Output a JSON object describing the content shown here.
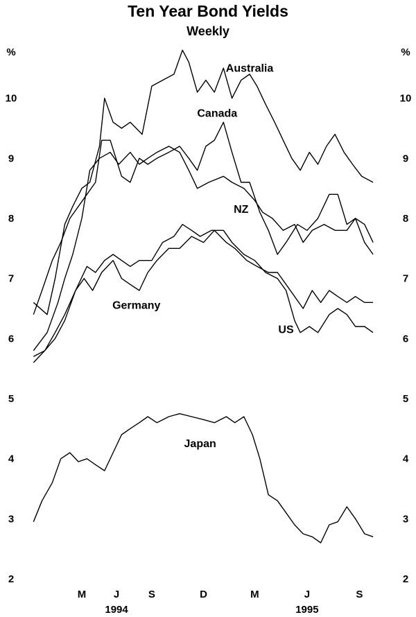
{
  "chart_data": {
    "type": "line",
    "title": "Ten Year Bond Yields",
    "subtitle": "Weekly",
    "unit_left": "%",
    "unit_right": "%",
    "ylim": [
      2,
      11
    ],
    "y_ticks": [
      2,
      3,
      4,
      5,
      6,
      7,
      8,
      9,
      10
    ],
    "xlim": [
      "1994-02-01",
      "1995-10-01"
    ],
    "x_ticks": [
      {
        "label": "M",
        "date": "1994-05-01"
      },
      {
        "label": "J",
        "date": "1994-07-01"
      },
      {
        "label": "S",
        "date": "1994-09-01"
      },
      {
        "label": "D",
        "date": "1994-12-01"
      },
      {
        "label": "M",
        "date": "1995-03-01"
      },
      {
        "label": "J",
        "date": "1995-06-01"
      },
      {
        "label": "S",
        "date": "1995-09-01"
      }
    ],
    "year_labels": [
      {
        "label": "1994",
        "date": "1994-07-01"
      },
      {
        "label": "1995",
        "date": "1995-06-01"
      }
    ],
    "series": [
      {
        "name": "Australia",
        "label_date": "1995-02-20",
        "label_value": 10.5,
        "points": [
          [
            "1994-02-05",
            6.6
          ],
          [
            "1994-03-01",
            6.4
          ],
          [
            "1994-03-15",
            7.0
          ],
          [
            "1994-04-01",
            7.9
          ],
          [
            "1994-04-15",
            8.2
          ],
          [
            "1994-05-01",
            8.5
          ],
          [
            "1994-05-15",
            8.6
          ],
          [
            "1994-06-01",
            9.2
          ],
          [
            "1994-06-10",
            10.0
          ],
          [
            "1994-06-25",
            9.6
          ],
          [
            "1994-07-10",
            9.5
          ],
          [
            "1994-07-25",
            9.6
          ],
          [
            "1994-08-15",
            9.4
          ],
          [
            "1994-09-01",
            10.2
          ],
          [
            "1994-09-20",
            10.3
          ],
          [
            "1994-10-10",
            10.4
          ],
          [
            "1994-10-25",
            10.8
          ],
          [
            "1994-11-05",
            10.6
          ],
          [
            "1994-11-20",
            10.1
          ],
          [
            "1994-12-05",
            10.3
          ],
          [
            "1994-12-20",
            10.1
          ],
          [
            "1995-01-05",
            10.5
          ],
          [
            "1995-01-20",
            10.0
          ],
          [
            "1995-02-05",
            10.3
          ],
          [
            "1995-02-20",
            10.4
          ],
          [
            "1995-03-05",
            10.2
          ],
          [
            "1995-03-20",
            9.9
          ],
          [
            "1995-04-05",
            9.6
          ],
          [
            "1995-04-20",
            9.3
          ],
          [
            "1995-05-05",
            9.0
          ],
          [
            "1995-05-20",
            8.8
          ],
          [
            "1995-06-05",
            9.1
          ],
          [
            "1995-06-20",
            8.9
          ],
          [
            "1995-07-05",
            9.2
          ],
          [
            "1995-07-20",
            9.4
          ],
          [
            "1995-08-05",
            9.1
          ],
          [
            "1995-08-20",
            8.9
          ],
          [
            "1995-09-05",
            8.7
          ],
          [
            "1995-09-25",
            8.6
          ]
        ]
      },
      {
        "name": "Canada",
        "label_date": "1994-12-25",
        "label_value": 9.75,
        "points": [
          [
            "1994-02-05",
            6.4
          ],
          [
            "1994-02-20",
            6.8
          ],
          [
            "1994-03-10",
            7.3
          ],
          [
            "1994-03-25",
            7.6
          ],
          [
            "1994-04-10",
            8.0
          ],
          [
            "1994-04-25",
            8.2
          ],
          [
            "1994-05-10",
            8.4
          ],
          [
            "1994-05-25",
            8.6
          ],
          [
            "1994-06-05",
            9.3
          ],
          [
            "1994-06-20",
            9.3
          ],
          [
            "1994-07-10",
            8.7
          ],
          [
            "1994-07-25",
            8.6
          ],
          [
            "1994-08-10",
            9.0
          ],
          [
            "1994-08-25",
            8.9
          ],
          [
            "1994-09-10",
            9.0
          ],
          [
            "1994-10-01",
            9.1
          ],
          [
            "1994-10-20",
            9.2
          ],
          [
            "1994-11-05",
            9.0
          ],
          [
            "1994-11-20",
            8.8
          ],
          [
            "1994-12-05",
            9.2
          ],
          [
            "1994-12-20",
            9.3
          ],
          [
            "1995-01-05",
            9.6
          ],
          [
            "1995-01-20",
            9.1
          ],
          [
            "1995-02-05",
            8.6
          ],
          [
            "1995-02-20",
            8.6
          ],
          [
            "1995-03-10",
            8.1
          ],
          [
            "1995-03-25",
            7.8
          ],
          [
            "1995-04-10",
            7.4
          ],
          [
            "1995-04-25",
            7.6
          ],
          [
            "1995-05-15",
            7.9
          ],
          [
            "1995-06-01",
            7.8
          ],
          [
            "1995-06-20",
            8.0
          ],
          [
            "1995-07-10",
            8.4
          ],
          [
            "1995-07-25",
            8.4
          ],
          [
            "1995-08-10",
            7.9
          ],
          [
            "1995-08-25",
            8.0
          ],
          [
            "1995-09-10",
            7.9
          ],
          [
            "1995-09-25",
            7.6
          ]
        ]
      },
      {
        "name": "NZ",
        "label_date": "1995-02-05",
        "label_value": 8.15,
        "points": [
          [
            "1994-02-05",
            5.8
          ],
          [
            "1994-03-01",
            6.1
          ],
          [
            "1994-03-20",
            6.6
          ],
          [
            "1994-04-01",
            7.0
          ],
          [
            "1994-04-15",
            7.4
          ],
          [
            "1994-05-01",
            8.0
          ],
          [
            "1994-05-15",
            8.8
          ],
          [
            "1994-06-01",
            9.0
          ],
          [
            "1994-06-20",
            9.1
          ],
          [
            "1994-07-05",
            8.9
          ],
          [
            "1994-07-25",
            9.1
          ],
          [
            "1994-08-10",
            8.9
          ],
          [
            "1994-08-25",
            9.0
          ],
          [
            "1994-09-10",
            9.1
          ],
          [
            "1994-10-01",
            9.2
          ],
          [
            "1994-10-20",
            9.1
          ],
          [
            "1994-11-05",
            8.8
          ],
          [
            "1994-11-20",
            8.5
          ],
          [
            "1994-12-10",
            8.6
          ],
          [
            "1995-01-05",
            8.7
          ],
          [
            "1995-01-20",
            8.6
          ],
          [
            "1995-02-10",
            8.5
          ],
          [
            "1995-03-01",
            8.3
          ],
          [
            "1995-03-15",
            8.1
          ],
          [
            "1995-04-01",
            8.0
          ],
          [
            "1995-04-20",
            7.8
          ],
          [
            "1995-05-10",
            7.9
          ],
          [
            "1995-05-25",
            7.6
          ],
          [
            "1995-06-10",
            7.8
          ],
          [
            "1995-07-01",
            7.9
          ],
          [
            "1995-07-20",
            7.8
          ],
          [
            "1995-08-10",
            7.8
          ],
          [
            "1995-08-25",
            8.0
          ],
          [
            "1995-09-10",
            7.6
          ],
          [
            "1995-09-25",
            7.4
          ]
        ]
      },
      {
        "name": "Germany",
        "label_date": "1994-08-05",
        "label_value": 6.55,
        "points": [
          [
            "1994-02-05",
            5.7
          ],
          [
            "1994-02-25",
            5.8
          ],
          [
            "1994-03-15",
            6.0
          ],
          [
            "1994-04-01",
            6.3
          ],
          [
            "1994-04-20",
            6.8
          ],
          [
            "1994-05-05",
            7.0
          ],
          [
            "1994-05-20",
            6.8
          ],
          [
            "1994-06-05",
            7.1
          ],
          [
            "1994-06-25",
            7.3
          ],
          [
            "1994-07-10",
            7.0
          ],
          [
            "1994-07-25",
            6.9
          ],
          [
            "1994-08-10",
            6.8
          ],
          [
            "1994-08-25",
            7.1
          ],
          [
            "1994-09-10",
            7.3
          ],
          [
            "1994-10-01",
            7.5
          ],
          [
            "1994-10-20",
            7.5
          ],
          [
            "1994-11-10",
            7.7
          ],
          [
            "1994-12-01",
            7.6
          ],
          [
            "1994-12-20",
            7.8
          ],
          [
            "1995-01-10",
            7.6
          ],
          [
            "1995-01-25",
            7.5
          ],
          [
            "1995-02-15",
            7.3
          ],
          [
            "1995-03-05",
            7.2
          ],
          [
            "1995-03-25",
            7.1
          ],
          [
            "1995-04-10",
            7.1
          ],
          [
            "1995-04-25",
            6.9
          ],
          [
            "1995-05-10",
            6.7
          ],
          [
            "1995-05-25",
            6.5
          ],
          [
            "1995-06-10",
            6.8
          ],
          [
            "1995-06-25",
            6.6
          ],
          [
            "1995-07-10",
            6.8
          ],
          [
            "1995-07-25",
            6.7
          ],
          [
            "1995-08-10",
            6.6
          ],
          [
            "1995-08-25",
            6.7
          ],
          [
            "1995-09-10",
            6.6
          ],
          [
            "1995-09-25",
            6.6
          ]
        ]
      },
      {
        "name": "US",
        "label_date": "1995-04-25",
        "label_value": 6.15,
        "points": [
          [
            "1994-02-05",
            5.6
          ],
          [
            "1994-02-25",
            5.8
          ],
          [
            "1994-03-15",
            6.1
          ],
          [
            "1994-04-01",
            6.4
          ],
          [
            "1994-04-20",
            6.8
          ],
          [
            "1994-05-10",
            7.2
          ],
          [
            "1994-05-25",
            7.1
          ],
          [
            "1994-06-10",
            7.3
          ],
          [
            "1994-06-25",
            7.4
          ],
          [
            "1994-07-10",
            7.3
          ],
          [
            "1994-07-25",
            7.2
          ],
          [
            "1994-08-10",
            7.3
          ],
          [
            "1994-09-01",
            7.3
          ],
          [
            "1994-09-20",
            7.6
          ],
          [
            "1994-10-10",
            7.7
          ],
          [
            "1994-10-25",
            7.9
          ],
          [
            "1994-11-10",
            7.8
          ],
          [
            "1994-11-25",
            7.7
          ],
          [
            "1994-12-15",
            7.8
          ],
          [
            "1995-01-05",
            7.8
          ],
          [
            "1995-01-20",
            7.6
          ],
          [
            "1995-02-10",
            7.4
          ],
          [
            "1995-03-01",
            7.3
          ],
          [
            "1995-03-20",
            7.1
          ],
          [
            "1995-04-10",
            7.0
          ],
          [
            "1995-04-25",
            6.8
          ],
          [
            "1995-05-10",
            6.3
          ],
          [
            "1995-05-20",
            6.1
          ],
          [
            "1995-06-05",
            6.2
          ],
          [
            "1995-06-20",
            6.1
          ],
          [
            "1995-07-10",
            6.4
          ],
          [
            "1995-07-25",
            6.5
          ],
          [
            "1995-08-10",
            6.4
          ],
          [
            "1995-08-25",
            6.2
          ],
          [
            "1995-09-10",
            6.2
          ],
          [
            "1995-09-25",
            6.1
          ]
        ]
      },
      {
        "name": "Japan",
        "label_date": "1994-11-25",
        "label_value": 4.25,
        "points": [
          [
            "1994-02-05",
            2.95
          ],
          [
            "1994-02-20",
            3.3
          ],
          [
            "1994-03-10",
            3.6
          ],
          [
            "1994-03-25",
            4.0
          ],
          [
            "1994-04-10",
            4.1
          ],
          [
            "1994-04-25",
            3.95
          ],
          [
            "1994-05-10",
            4.0
          ],
          [
            "1994-05-25",
            3.9
          ],
          [
            "1994-06-10",
            3.8
          ],
          [
            "1994-06-25",
            4.1
          ],
          [
            "1994-07-10",
            4.4
          ],
          [
            "1994-07-25",
            4.5
          ],
          [
            "1994-08-10",
            4.6
          ],
          [
            "1994-08-25",
            4.7
          ],
          [
            "1994-09-10",
            4.6
          ],
          [
            "1994-10-01",
            4.7
          ],
          [
            "1994-10-20",
            4.75
          ],
          [
            "1994-11-10",
            4.7
          ],
          [
            "1994-12-01",
            4.65
          ],
          [
            "1994-12-20",
            4.6
          ],
          [
            "1995-01-10",
            4.7
          ],
          [
            "1995-01-25",
            4.6
          ],
          [
            "1995-02-10",
            4.7
          ],
          [
            "1995-02-25",
            4.4
          ],
          [
            "1995-03-10",
            4.0
          ],
          [
            "1995-03-25",
            3.4
          ],
          [
            "1995-04-10",
            3.3
          ],
          [
            "1995-04-25",
            3.1
          ],
          [
            "1995-05-10",
            2.9
          ],
          [
            "1995-05-25",
            2.75
          ],
          [
            "1995-06-10",
            2.7
          ],
          [
            "1995-06-25",
            2.6
          ],
          [
            "1995-07-10",
            2.9
          ],
          [
            "1995-07-25",
            2.95
          ],
          [
            "1995-08-10",
            3.2
          ],
          [
            "1995-08-25",
            3.0
          ],
          [
            "1995-09-10",
            2.75
          ],
          [
            "1995-09-25",
            2.7
          ]
        ]
      }
    ]
  }
}
